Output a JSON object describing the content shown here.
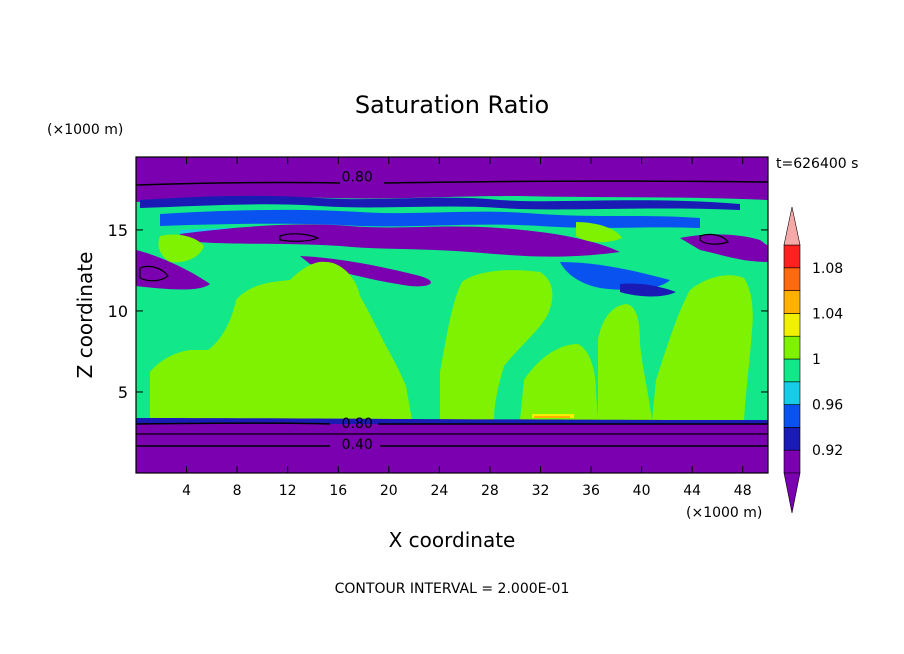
{
  "chart_data": {
    "type": "heatmap",
    "title": "Saturation Ratio",
    "xlabel": "X coordinate",
    "ylabel": "Z coordinate",
    "x_unit": "(×1000 m)",
    "z_unit": "(×1000 m)",
    "time_label": "t=626400 s",
    "footer": "CONTOUR INTERVAL = 2.000E-01",
    "xlim": [
      0,
      50
    ],
    "ylim": [
      0,
      19.5
    ],
    "x_ticks": [
      4,
      8,
      12,
      16,
      20,
      24,
      28,
      32,
      36,
      40,
      44,
      48
    ],
    "y_ticks": [
      5,
      10,
      15
    ],
    "contour_labels": [
      {
        "text": "0.80",
        "x": 17.5,
        "z": 18.3
      },
      {
        "text": "0.80",
        "x": 17.5,
        "z": 3.1
      },
      {
        "text": "0.40",
        "x": 17.5,
        "z": 1.8
      }
    ],
    "colorbar": {
      "levels": [
        0.9,
        0.92,
        0.94,
        0.96,
        0.98,
        1.0,
        1.02,
        1.04,
        1.06,
        1.08,
        1.1
      ],
      "tick_labels": [
        "0.92",
        "0.96",
        "1",
        "1.04",
        "1.08"
      ],
      "colors": [
        "#7a00b0",
        "#1a1ab5",
        "#0a52f0",
        "#16cce8",
        "#12e88a",
        "#7ef200",
        "#f0f000",
        "#ffb000",
        "#ff6a10",
        "#ff2020",
        "#f7a8a8"
      ],
      "under_color": "#7a00b0",
      "over_color": "#f7a8a8"
    }
  }
}
